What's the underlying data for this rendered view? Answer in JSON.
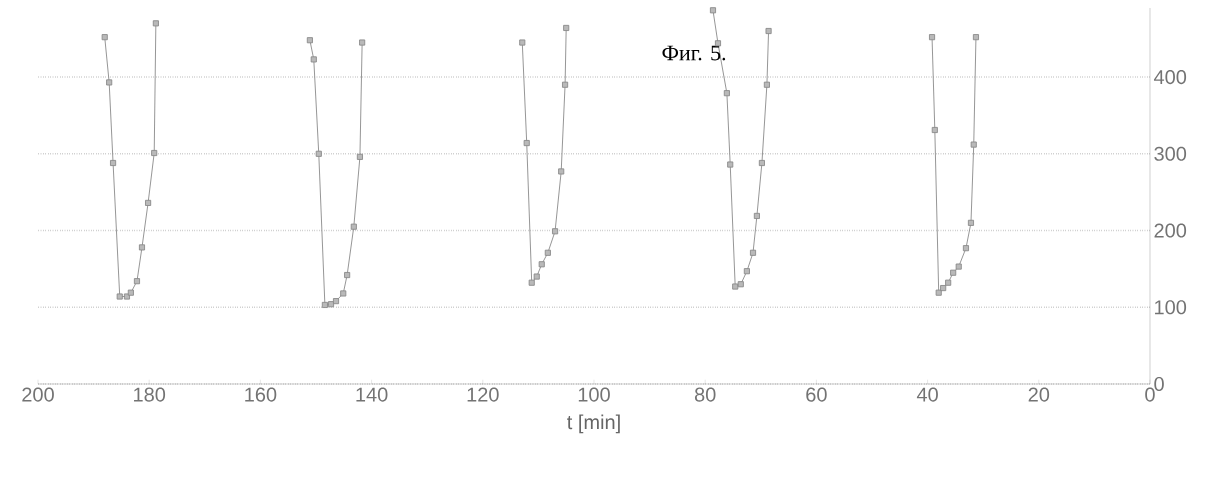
{
  "chart_data": {
    "type": "line",
    "title": "Фиг. 5.",
    "xlabel": "t [min]",
    "xlim": [
      200,
      0
    ],
    "xticks": [
      200,
      180,
      160,
      140,
      120,
      100,
      80,
      60,
      40,
      20,
      0
    ],
    "ylim": [
      0,
      490
    ],
    "yticks": [
      0,
      100,
      200,
      300,
      400
    ],
    "grid": "y",
    "marker": "square",
    "line_style": "solid",
    "series": [
      {
        "color": "#8a8a8a",
        "x": [
          188,
          187.2,
          186.5,
          185.3,
          184,
          183.3,
          182.2,
          181.3,
          180.2,
          179.1,
          178.8
        ],
        "values": [
          452,
          393,
          288,
          114,
          114,
          119,
          134,
          178,
          236,
          301,
          470
        ]
      },
      {
        "color": "#8a8a8a",
        "x": [
          151.1,
          150.4,
          149.5,
          148.4,
          147.3,
          146.4,
          145.1,
          144.4,
          143.2,
          142.1,
          141.7
        ],
        "values": [
          448,
          423,
          300,
          103,
          104,
          108,
          118,
          142,
          205,
          296,
          445
        ]
      },
      {
        "color": "#8a8a8a",
        "x": [
          112.9,
          112.1,
          111.2,
          110.3,
          109.4,
          108.3,
          107,
          105.9,
          105.2,
          105
        ],
        "values": [
          445,
          314,
          132,
          140,
          156,
          171,
          199,
          277,
          390,
          464
        ]
      },
      {
        "color": "#8a8a8a",
        "x": [
          78.6,
          77.7,
          76.1,
          75.5,
          74.6,
          73.6,
          72.5,
          71.4,
          70.7,
          69.8,
          68.9,
          68.6
        ],
        "values": [
          487,
          444,
          379,
          286,
          127,
          130,
          147,
          171,
          219,
          288,
          390,
          460
        ]
      },
      {
        "color": "#8a8a8a",
        "x": [
          39.2,
          38.7,
          38,
          37.2,
          36.3,
          35.4,
          34.4,
          33.1,
          32.2,
          31.7,
          31.3
        ],
        "values": [
          452,
          331,
          119,
          125,
          132,
          145,
          153,
          177,
          210,
          312,
          452
        ]
      }
    ]
  }
}
